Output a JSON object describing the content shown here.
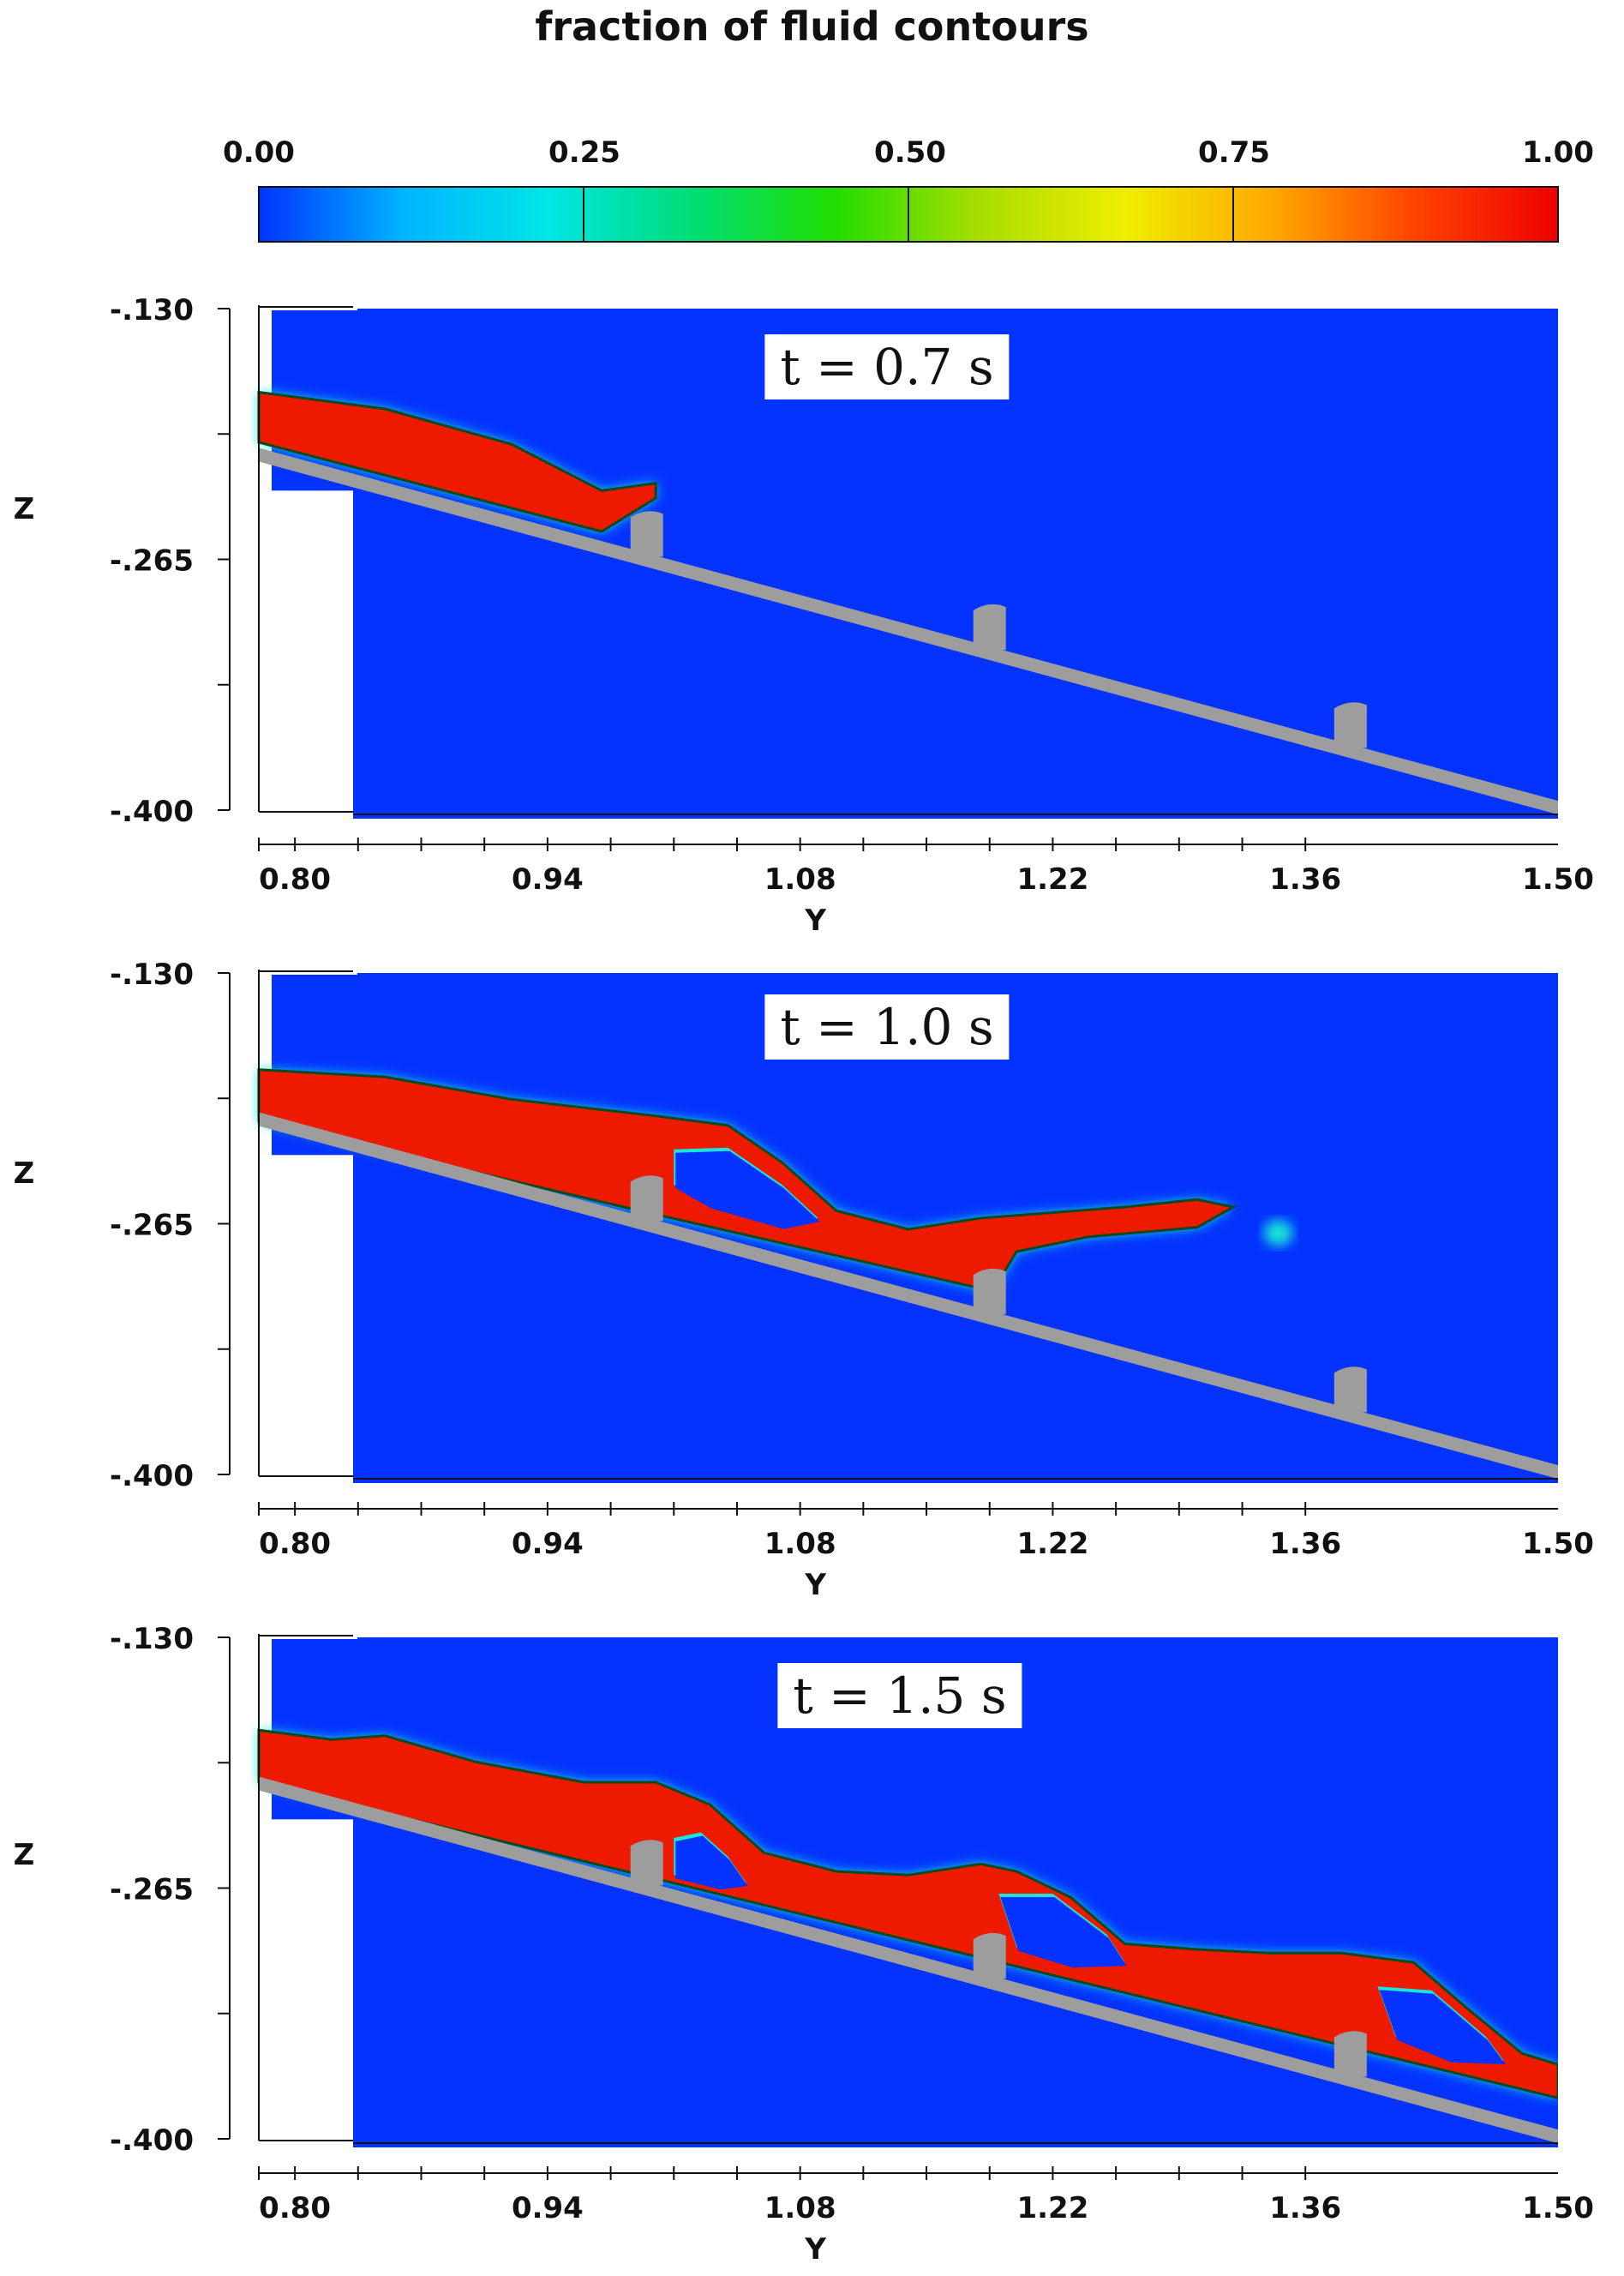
{
  "title": "fraction of fluid contours",
  "colorbar": {
    "ticks": [
      "0.00",
      "0.25",
      "0.50",
      "0.75",
      "1.00"
    ],
    "colors": [
      "#0033ff",
      "#00b4ff",
      "#00e6e6",
      "#00dd77",
      "#22dd00",
      "#aadd00",
      "#eeee00",
      "#ffaa00",
      "#ff4400",
      "#ee0000"
    ]
  },
  "colors": {
    "background_fluid": "#0433ff",
    "water": "#ee1a00",
    "wall": "#9d9d9d",
    "interface": "#19e6d8"
  },
  "chart_data": [
    {
      "type": "heatmap",
      "time_label": "t = 0.7 s",
      "xlabel": "Y",
      "ylabel": "Z",
      "x_ticks": [
        "0.80",
        "0.94",
        "1.08",
        "1.22",
        "1.36",
        "1.50"
      ],
      "y_ticks": [
        "-.130",
        "-.265",
        "-.400"
      ],
      "xlim": [
        0.78,
        1.5
      ],
      "ylim": [
        -0.4,
        -0.13
      ],
      "water_top": [
        [
          0.78,
          -0.175
        ],
        [
          0.85,
          -0.184
        ],
        [
          0.92,
          -0.203
        ],
        [
          0.97,
          -0.228
        ],
        [
          1.0,
          -0.224
        ]
      ],
      "water_bottom": [
        [
          0.78,
          -0.202
        ],
        [
          0.97,
          -0.25
        ],
        [
          1.0,
          -0.232
        ]
      ],
      "fluid_blob": [],
      "cavities": []
    },
    {
      "type": "heatmap",
      "time_label": "t = 1.0 s",
      "xlabel": "Y",
      "ylabel": "Z",
      "x_ticks": [
        "0.80",
        "0.94",
        "1.08",
        "1.22",
        "1.36",
        "1.50"
      ],
      "y_ticks": [
        "-.130",
        "-.265",
        "-.400"
      ],
      "xlim": [
        0.78,
        1.5
      ],
      "ylim": [
        -0.4,
        -0.13
      ],
      "water_top": [
        [
          0.78,
          -0.182
        ],
        [
          0.85,
          -0.186
        ],
        [
          0.92,
          -0.198
        ],
        [
          1.0,
          -0.207
        ],
        [
          1.04,
          -0.212
        ],
        [
          1.07,
          -0.232
        ],
        [
          1.1,
          -0.258
        ],
        [
          1.14,
          -0.268
        ],
        [
          1.18,
          -0.262
        ],
        [
          1.22,
          -0.259
        ],
        [
          1.26,
          -0.256
        ],
        [
          1.3,
          -0.252
        ],
        [
          1.32,
          -0.256
        ],
        [
          1.3,
          -0.267
        ],
        [
          1.24,
          -0.272
        ],
        [
          1.2,
          -0.28
        ],
        [
          1.19,
          -0.296
        ]
      ],
      "water_bottom": [
        [
          0.78,
          -0.21
        ],
        [
          1.0,
          -0.26
        ],
        [
          1.19,
          -0.302
        ]
      ],
      "fluid_blob": [
        [
          1.345,
          -0.27,
          0.008,
          0.007
        ]
      ],
      "cavities": [
        [
          [
            1.01,
            -0.225
          ],
          [
            1.04,
            -0.224
          ],
          [
            1.07,
            -0.244
          ],
          [
            1.09,
            -0.262
          ],
          [
            1.07,
            -0.266
          ],
          [
            1.03,
            -0.255
          ],
          [
            1.01,
            -0.244
          ]
        ]
      ]
    },
    {
      "type": "heatmap",
      "time_label": "t = 1.5 s",
      "xlabel": "Y",
      "ylabel": "Z",
      "x_ticks": [
        "0.80",
        "0.94",
        "1.08",
        "1.22",
        "1.36",
        "1.50"
      ],
      "y_ticks": [
        "-.130",
        "-.265",
        "-.400"
      ],
      "xlim": [
        0.78,
        1.5
      ],
      "ylim": [
        -0.4,
        -0.13
      ],
      "water_top": [
        [
          0.78,
          -0.18
        ],
        [
          0.82,
          -0.185
        ],
        [
          0.85,
          -0.183
        ],
        [
          0.9,
          -0.197
        ],
        [
          0.96,
          -0.208
        ],
        [
          1.0,
          -0.208
        ],
        [
          1.03,
          -0.22
        ],
        [
          1.06,
          -0.246
        ],
        [
          1.1,
          -0.256
        ],
        [
          1.14,
          -0.258
        ],
        [
          1.18,
          -0.252
        ],
        [
          1.2,
          -0.256
        ],
        [
          1.23,
          -0.27
        ],
        [
          1.26,
          -0.295
        ],
        [
          1.3,
          -0.298
        ],
        [
          1.34,
          -0.3
        ],
        [
          1.38,
          -0.3
        ],
        [
          1.42,
          -0.305
        ],
        [
          1.45,
          -0.33
        ],
        [
          1.48,
          -0.354
        ],
        [
          1.5,
          -0.36
        ]
      ],
      "water_bottom": [
        [
          0.78,
          -0.208
        ],
        [
          1.5,
          -0.378
        ]
      ],
      "fluid_blob": [],
      "cavities": [
        [
          [
            1.01,
            -0.238
          ],
          [
            1.025,
            -0.235
          ],
          [
            1.04,
            -0.248
          ],
          [
            1.05,
            -0.262
          ],
          [
            1.035,
            -0.264
          ],
          [
            1.01,
            -0.258
          ]
        ],
        [
          [
            1.19,
            -0.268
          ],
          [
            1.22,
            -0.268
          ],
          [
            1.25,
            -0.29
          ],
          [
            1.26,
            -0.305
          ],
          [
            1.23,
            -0.306
          ],
          [
            1.2,
            -0.297
          ]
        ],
        [
          [
            1.4,
            -0.318
          ],
          [
            1.43,
            -0.32
          ],
          [
            1.46,
            -0.345
          ],
          [
            1.47,
            -0.358
          ],
          [
            1.44,
            -0.357
          ],
          [
            1.41,
            -0.345
          ]
        ]
      ]
    }
  ]
}
